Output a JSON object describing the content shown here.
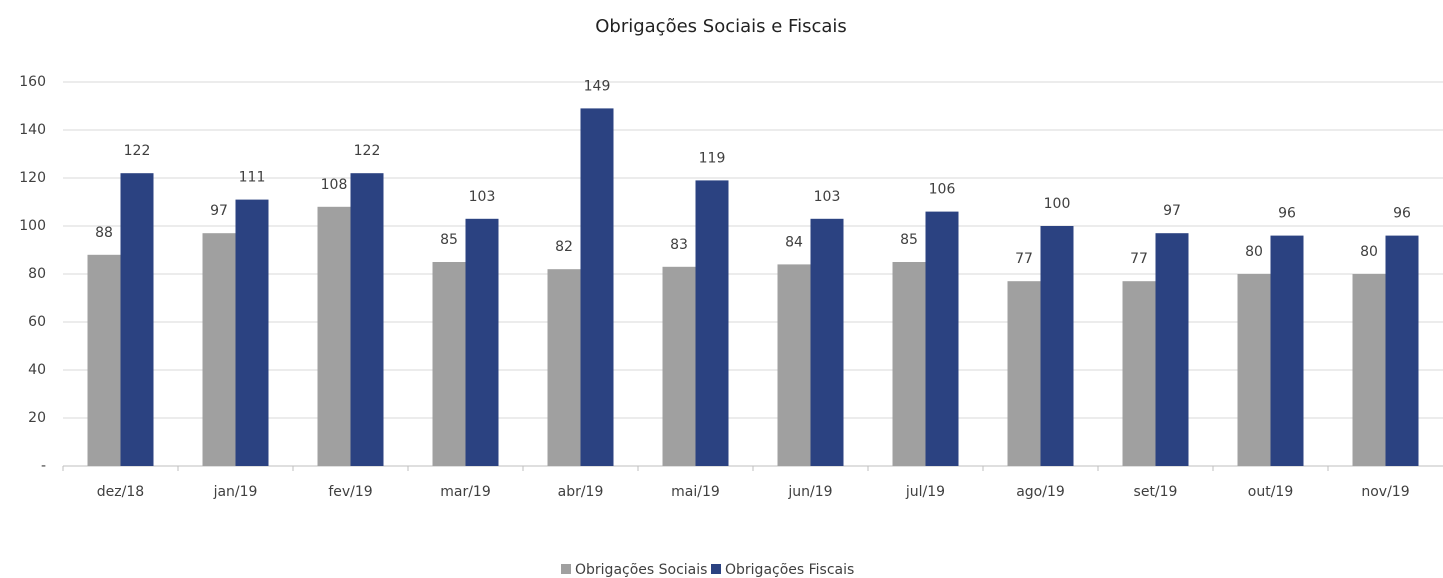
{
  "chart_data": {
    "type": "bar",
    "title": "Obrigações Sociais e Fiscais",
    "categories": [
      "dez/18",
      "jan/19",
      "fev/19",
      "mar/19",
      "abr/19",
      "mai/19",
      "jun/19",
      "jul/19",
      "ago/19",
      "set/19",
      "out/19",
      "nov/19"
    ],
    "series": [
      {
        "name": "Obrigações Sociais",
        "color": "#a0a0a0",
        "values": [
          88,
          97,
          108,
          85,
          82,
          83,
          84,
          85,
          77,
          77,
          80,
          80
        ]
      },
      {
        "name": "Obrigações Fiscais",
        "color": "#2b4281",
        "values": [
          122,
          111,
          122,
          103,
          149,
          119,
          103,
          106,
          100,
          97,
          96,
          96
        ]
      }
    ],
    "ylim": [
      0,
      160
    ],
    "yticks": [
      {
        "value": 0,
        "label": "-"
      },
      20,
      40,
      60,
      80,
      100,
      120,
      140,
      160
    ],
    "grid": true,
    "legend": "bottom"
  }
}
